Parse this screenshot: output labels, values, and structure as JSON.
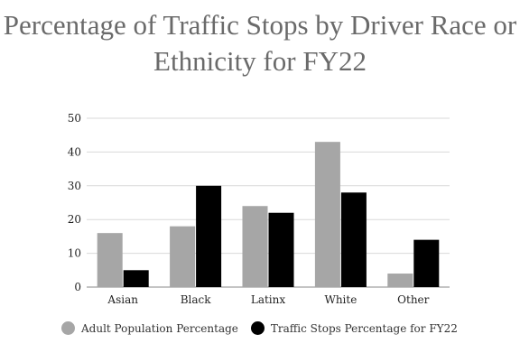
{
  "chart_data": {
    "type": "bar",
    "title": "Percentage of Traffic Stops by Driver Race or Ethnicity for FY22",
    "categories": [
      "Asian",
      "Black",
      "Latinx",
      "White",
      "Other"
    ],
    "series": [
      {
        "name": "Adult Population Percentage",
        "values": [
          16,
          18,
          24,
          43,
          4
        ],
        "color": "#a6a6a6"
      },
      {
        "name": "Traffic Stops Percentage for FY22",
        "values": [
          5,
          30,
          22,
          28,
          14
        ],
        "color": "#000000"
      }
    ],
    "ylim": [
      0,
      50
    ],
    "yticks": [
      "0",
      "10",
      "20",
      "30",
      "40",
      "50"
    ],
    "grid": true,
    "legend_position": "bottom"
  }
}
